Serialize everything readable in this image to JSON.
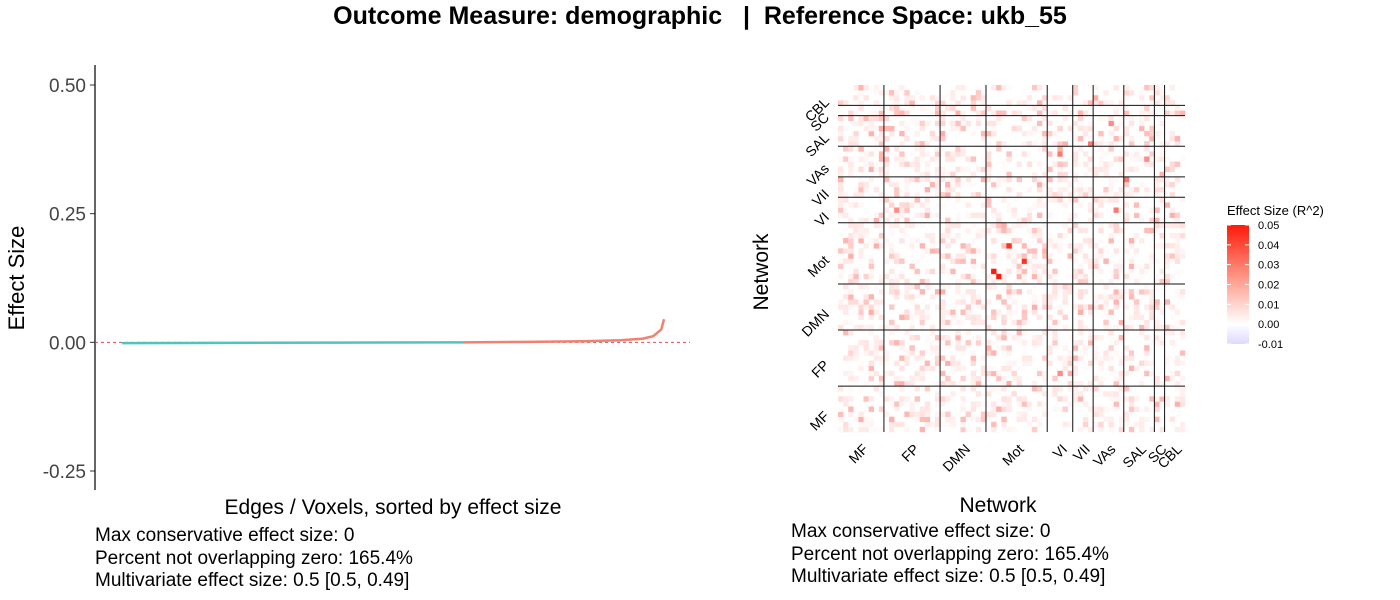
{
  "title": "Outcome Measure: demographic   |  Reference Space: ukb_55",
  "left_chart": {
    "xlabel": "Edges / Voxels, sorted by effect size",
    "ylabel": "Effect Size",
    "stats": [
      "Max conservative effect size: 0",
      "Percent not overlapping zero: 165.4%",
      "Multivariate effect size: 0.5 [0.5, 0.49]"
    ]
  },
  "right_chart": {
    "xlabel": "Network",
    "ylabel": "Network",
    "legend_title": "Effect Size (R^2)",
    "legend_ticks": [
      "0.05",
      "0.04",
      "0.03",
      "0.02",
      "0.01",
      "0.00",
      "-0.01"
    ],
    "stats": [
      "Max conservative effect size: 0",
      "Percent not overlapping zero: 165.4%",
      "Multivariate effect size: 0.5 [0.5, 0.49]"
    ]
  },
  "chart_data": [
    {
      "type": "line",
      "xlabel": "Edges / Voxels, sorted by effect size",
      "ylabel": "Effect Size",
      "ylim": [
        -0.27,
        0.54
      ],
      "xlim": [
        0,
        1
      ],
      "yticks": [
        0.5,
        0.25,
        0.0,
        -0.25
      ],
      "ytick_labels": [
        "0.50",
        "0.25",
        "0.00",
        "-0.25"
      ],
      "reference_line": 0,
      "series": [
        {
          "color": "#4ec4bc",
          "x": [
            0.0,
            0.2,
            0.4,
            0.6,
            0.63
          ],
          "y": [
            -0.0015,
            -0.001,
            -0.0005,
            0.0,
            0.0
          ]
        },
        {
          "color": "#f08070",
          "x": [
            0.63,
            0.75,
            0.85,
            0.92,
            0.96,
            0.98,
            0.995,
            1.0
          ],
          "y": [
            0.0,
            0.001,
            0.002,
            0.004,
            0.007,
            0.012,
            0.025,
            0.045
          ]
        }
      ],
      "grid": false
    },
    {
      "type": "heatmap",
      "xlabel": "Network",
      "ylabel": "Network",
      "networks": [
        "MF",
        "FP",
        "DMN",
        "Mot",
        "VI",
        "VII",
        "VAs",
        "SAL",
        "SC",
        "CBL"
      ],
      "network_sizes": [
        9,
        11,
        9,
        12,
        5,
        4,
        6,
        6,
        2,
        4
      ],
      "clim": [
        -0.01,
        0.05
      ],
      "colors": {
        "low": "#e0d8ff",
        "mid": "#ffffff",
        "high": "#ff1a0a"
      },
      "hot_cells": [
        {
          "row": "Mot",
          "col": "Mot",
          "value": 0.05
        },
        {
          "row": "Mot",
          "col": "Mot",
          "value": 0.045
        },
        {
          "row": "VII",
          "col": "SAL",
          "value": 0.03
        },
        {
          "row": "VAs",
          "col": "VI",
          "value": 0.03
        },
        {
          "row": "FP",
          "col": "VI",
          "value": 0.025
        },
        {
          "row": "SAL",
          "col": "VAs",
          "value": 0.025
        }
      ],
      "typical_value": 0.005,
      "legend": "right"
    }
  ]
}
